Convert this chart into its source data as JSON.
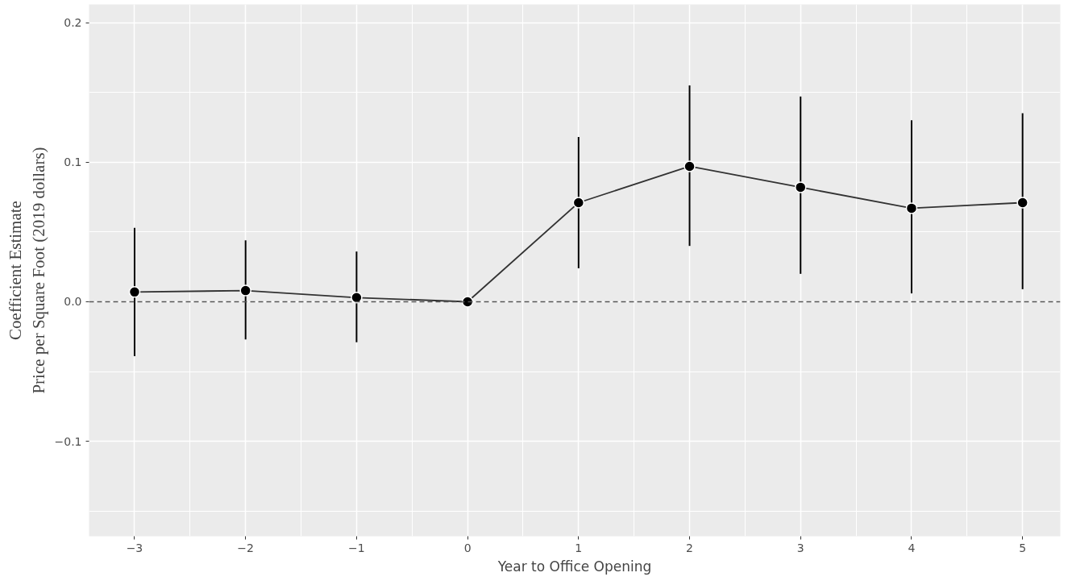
{
  "chart_data": {
    "type": "line",
    "xlabel": "Year to Office Opening",
    "ylabel": "Coefficient Estimate\nPrice per Square Foot (2019 dollars)",
    "x": [
      -3,
      -2,
      -1,
      0,
      1,
      2,
      3,
      4,
      5
    ],
    "values": [
      0.007,
      0.008,
      0.003,
      0.0,
      0.071,
      0.097,
      0.082,
      0.067,
      0.071
    ],
    "errors": [
      [
        -0.039,
        0.053
      ],
      [
        -0.027,
        0.044
      ],
      [
        -0.029,
        0.036
      ],
      null,
      [
        0.024,
        0.118
      ],
      [
        0.04,
        0.155
      ],
      [
        0.02,
        0.147
      ],
      [
        0.006,
        0.13
      ],
      [
        0.009,
        0.135
      ]
    ],
    "color": "#000000",
    "marker": "circle",
    "line_style": "solid",
    "xlim": [
      -3.41,
      5.34
    ],
    "ylim": [
      -0.168,
      0.213
    ],
    "xticks": [
      -3,
      -2,
      -1,
      0,
      1,
      2,
      3,
      4,
      5
    ],
    "yticks": [
      {
        "value": -0.1,
        "label": "−0.1"
      },
      {
        "value": 0.0,
        "label": "0.0"
      },
      {
        "value": 0.1,
        "label": "0.1"
      },
      {
        "value": 0.2,
        "label": "0.2"
      }
    ],
    "ref_lines": [
      {
        "axis": "y",
        "value": 0.0,
        "label": null,
        "color": "#555555",
        "line_style": "dashed"
      }
    ],
    "grid": true
  }
}
